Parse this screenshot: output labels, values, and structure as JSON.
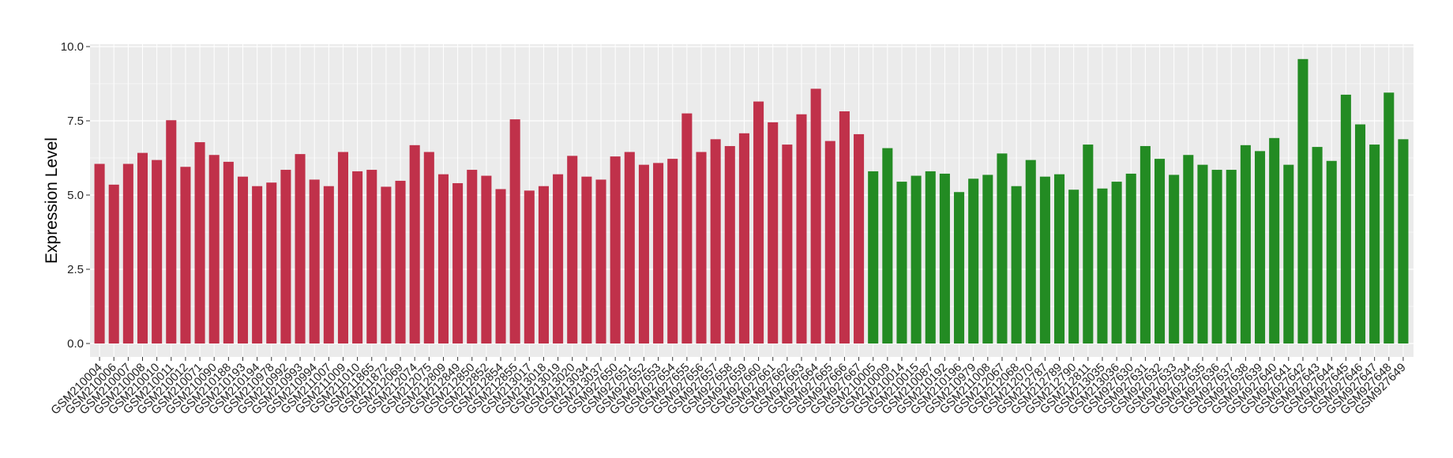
{
  "chart_data": {
    "type": "bar",
    "title": "",
    "xlabel": "",
    "ylabel": "Expression Level",
    "ylim": [
      0,
      10
    ],
    "yticks": [
      0,
      2.5,
      5,
      7.5,
      10
    ],
    "ytick_labels": [
      "0.0",
      "2.5",
      "5.0",
      "7.5",
      "10.0"
    ],
    "grid": true,
    "legend": "none",
    "panel_background": "#ebebeb",
    "grid_color": "#ffffff",
    "group_colors": {
      "red": "#c0314a",
      "green": "#238b23"
    },
    "categories": [
      "GSM210004",
      "GSM210006",
      "GSM210007",
      "GSM210008",
      "GSM210010",
      "GSM210011",
      "GSM210012",
      "GSM210071",
      "GSM210090",
      "GSM210188",
      "GSM210193",
      "GSM210194",
      "GSM210978",
      "GSM210992",
      "GSM210993",
      "GSM210994",
      "GSM211007",
      "GSM211009",
      "GSM211010",
      "GSM211865",
      "GSM211872",
      "GSM212069",
      "GSM212074",
      "GSM212075",
      "GSM212809",
      "GSM212849",
      "GSM212850",
      "GSM212852",
      "GSM212854",
      "GSM212855",
      "GSM213017",
      "GSM213018",
      "GSM213019",
      "GSM213020",
      "GSM213034",
      "GSM213037",
      "GSM927650",
      "GSM927651",
      "GSM927652",
      "GSM927653",
      "GSM927654",
      "GSM927655",
      "GSM927656",
      "GSM927657",
      "GSM927658",
      "GSM927659",
      "GSM927660",
      "GSM927661",
      "GSM927662",
      "GSM927663",
      "GSM927664",
      "GSM927665",
      "GSM927666",
      "GSM927667",
      "GSM210005",
      "GSM210009",
      "GSM210014",
      "GSM210015",
      "GSM210087",
      "GSM210192",
      "GSM210196",
      "GSM210979",
      "GSM211008",
      "GSM212067",
      "GSM212068",
      "GSM212070",
      "GSM212787",
      "GSM212789",
      "GSM212790",
      "GSM212811",
      "GSM213035",
      "GSM213036",
      "GSM927630",
      "GSM927631",
      "GSM927632",
      "GSM927633",
      "GSM927634",
      "GSM927635",
      "GSM927636",
      "GSM927637",
      "GSM927638",
      "GSM927639",
      "GSM927640",
      "GSM927641",
      "GSM927642",
      "GSM927643",
      "GSM927644",
      "GSM927645",
      "GSM927646",
      "GSM927647",
      "GSM927648",
      "GSM927649"
    ],
    "values": [
      6.05,
      5.35,
      6.05,
      6.42,
      6.18,
      7.52,
      5.95,
      6.78,
      6.35,
      6.12,
      5.62,
      5.3,
      5.42,
      5.85,
      6.38,
      5.52,
      5.3,
      6.45,
      5.8,
      5.85,
      5.28,
      5.48,
      6.68,
      6.45,
      5.7,
      5.4,
      5.85,
      5.65,
      5.2,
      7.55,
      5.15,
      5.3,
      5.7,
      6.32,
      5.62,
      5.52,
      6.3,
      6.45,
      6.02,
      6.08,
      6.22,
      7.75,
      6.45,
      6.88,
      6.65,
      7.08,
      8.15,
      7.45,
      6.7,
      7.72,
      8.58,
      6.82,
      7.82,
      7.05,
      5.8,
      6.58,
      5.45,
      5.65,
      5.8,
      5.72,
      5.1,
      5.55,
      5.68,
      6.4,
      5.3,
      6.18,
      5.62,
      5.7,
      5.18,
      6.7,
      5.22,
      5.45,
      5.72,
      6.65,
      6.22,
      5.68,
      6.35,
      6.02,
      5.85,
      5.85,
      6.68,
      6.48,
      6.92,
      6.02,
      9.58,
      6.62,
      6.15,
      8.38,
      7.38,
      6.7,
      8.45,
      6.88
    ],
    "groups": [
      "red",
      "red",
      "red",
      "red",
      "red",
      "red",
      "red",
      "red",
      "red",
      "red",
      "red",
      "red",
      "red",
      "red",
      "red",
      "red",
      "red",
      "red",
      "red",
      "red",
      "red",
      "red",
      "red",
      "red",
      "red",
      "red",
      "red",
      "red",
      "red",
      "red",
      "red",
      "red",
      "red",
      "red",
      "red",
      "red",
      "red",
      "red",
      "red",
      "red",
      "red",
      "red",
      "red",
      "red",
      "red",
      "red",
      "red",
      "red",
      "red",
      "red",
      "red",
      "red",
      "red",
      "red",
      "green",
      "green",
      "green",
      "green",
      "green",
      "green",
      "green",
      "green",
      "green",
      "green",
      "green",
      "green",
      "green",
      "green",
      "green",
      "green",
      "green",
      "green",
      "green",
      "green",
      "green",
      "green",
      "green",
      "green",
      "green",
      "green",
      "green",
      "green",
      "green",
      "green",
      "green",
      "green",
      "green",
      "green",
      "green",
      "green",
      "green",
      "green"
    ]
  }
}
